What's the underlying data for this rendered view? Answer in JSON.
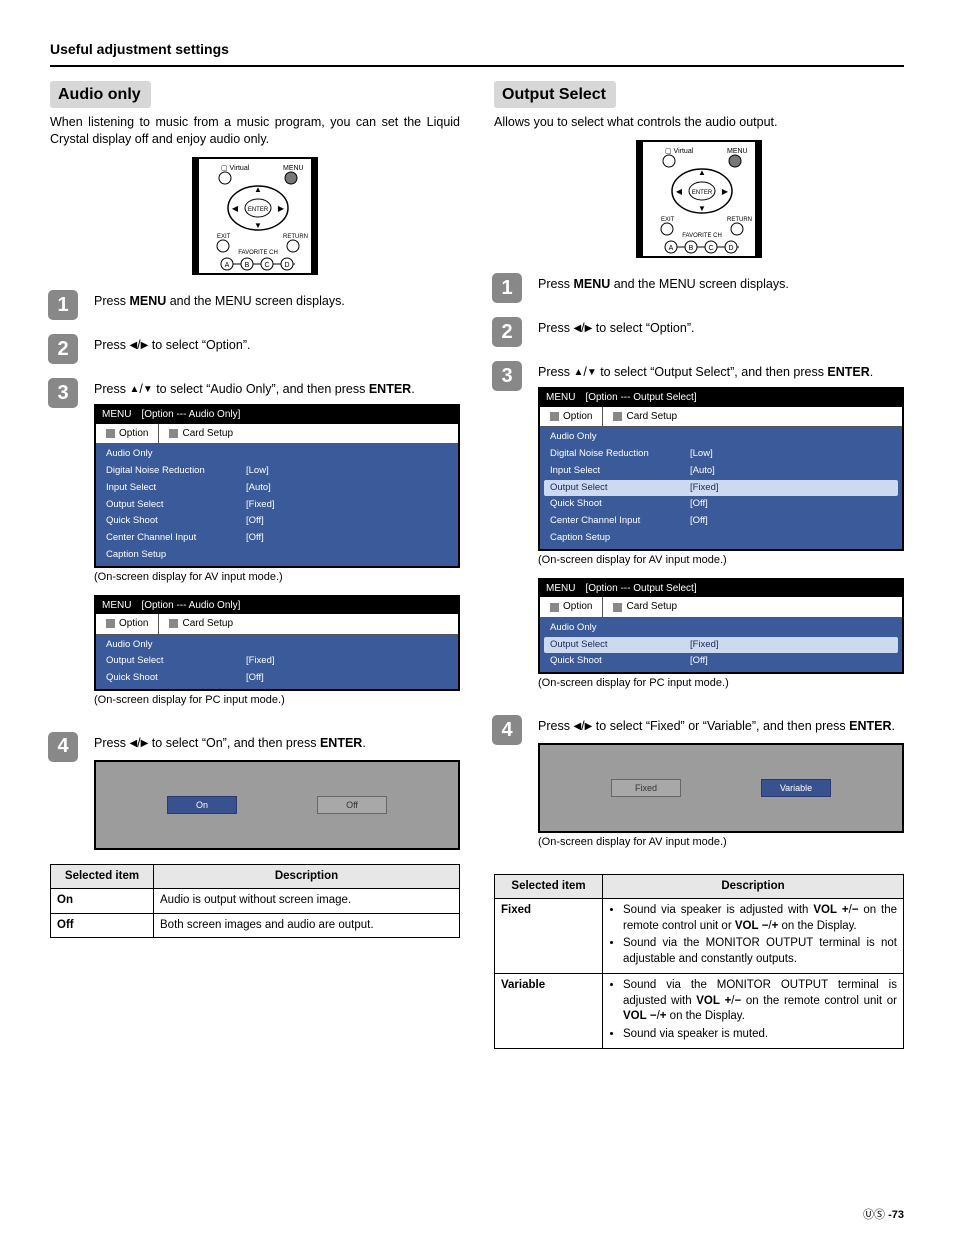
{
  "header": "Useful adjustment settings",
  "left": {
    "title": "Audio only",
    "intro": "When listening to music from a music program, you can set the Liquid Crystal display off and enjoy audio only.",
    "steps": {
      "s1": {
        "pre": "Press ",
        "bold": "MENU",
        "post": " and the MENU screen displays."
      },
      "s2": {
        "pre": "Press ",
        "post": " to select “Option”."
      },
      "s3": {
        "pre": "Press ",
        "post": " to select “Audio Only”, and then press ",
        "end": ".",
        "bold2": "ENTER"
      },
      "s4": {
        "pre": "Press ",
        "post": " to select “On”, and then press ",
        "bold2": "ENTER",
        "end": "."
      }
    },
    "menuA": {
      "title": "MENU [Option --- Audio Only]",
      "tab1": "Option",
      "tab2": "Card Setup",
      "rows": [
        [
          "Audio Only",
          ""
        ],
        [
          "Digital Noise Reduction",
          "[Low]"
        ],
        [
          "Input Select",
          "[Auto]"
        ],
        [
          "Output Select",
          "[Fixed]"
        ],
        [
          "Quick Shoot",
          "[Off]"
        ],
        [
          "Center Channel Input",
          "[Off]"
        ],
        [
          "Caption Setup",
          ""
        ]
      ],
      "caption": "(On-screen display for AV input mode.)"
    },
    "menuB": {
      "title": "MENU [Option --- Audio Only]",
      "tab1": "Option",
      "tab2": "Card Setup",
      "rows": [
        [
          "Audio Only",
          ""
        ],
        [
          "Output Select",
          "[Fixed]"
        ],
        [
          "Quick Shoot",
          "[Off]"
        ]
      ],
      "caption": "(On-screen display for PC input mode.)"
    },
    "sel": {
      "on": "On",
      "off": "Off"
    },
    "table": {
      "h1": "Selected item",
      "h2": "Description",
      "r1k": "On",
      "r1v": "Audio is output without screen image.",
      "r2k": "Off",
      "r2v": "Both screen images and audio are output."
    }
  },
  "right": {
    "title": "Output Select",
    "intro": "Allows you to select what controls the audio output.",
    "steps": {
      "s1": {
        "pre": "Press ",
        "bold": "MENU",
        "post": " and the MENU screen displays."
      },
      "s2": {
        "pre": "Press ",
        "post": " to select “Option”."
      },
      "s3": {
        "pre": "Press ",
        "post": " to select “Output Select”, and then press ",
        "bold2": "ENTER",
        "end": "."
      },
      "s4": {
        "pre": "Press ",
        "post": " to select “Fixed” or “Variable”, and then press ",
        "bold2": "ENTER",
        "end": "."
      }
    },
    "menuA": {
      "title": "MENU [Option --- Output Select]",
      "tab1": "Option",
      "tab2": "Card Setup",
      "rows": [
        [
          "Audio Only",
          ""
        ],
        [
          "Digital Noise Reduction",
          "[Low]"
        ],
        [
          "Input Select",
          "[Auto]"
        ],
        [
          "Output Select",
          "[Fixed]"
        ],
        [
          "Quick Shoot",
          "[Off]"
        ],
        [
          "Center Channel Input",
          "[Off]"
        ],
        [
          "Caption Setup",
          ""
        ]
      ],
      "hlIndex": 3,
      "caption": "(On-screen display for AV input mode.)"
    },
    "menuB": {
      "title": "MENU [Option --- Output Select]",
      "tab1": "Option",
      "tab2": "Card Setup",
      "rows": [
        [
          "Audio Only",
          ""
        ],
        [
          "Output Select",
          "[Fixed]"
        ],
        [
          "Quick Shoot",
          "[Off]"
        ]
      ],
      "hlIndex": 1,
      "caption": "(On-screen display for PC input mode.)"
    },
    "sel": {
      "a": "Fixed",
      "b": "Variable"
    },
    "selCaption": "(On-screen display for AV input mode.)",
    "table": {
      "h1": "Selected item",
      "h2": "Description",
      "r1k": "Fixed",
      "r1b1a": "Sound via speaker is adjusted with ",
      "r1b1b": "VOL k",
      "r1b1c": "/",
      "r1b1d": "l",
      "r1b1e": " on the remote control unit or ",
      "r1b1f": "VOL l",
      "r1b1g": "/",
      "r1b1h": "k",
      "r1b1i": " on the Display.",
      "r1b2": "Sound via the MONITOR OUTPUT terminal is not adjustable and constantly outputs.",
      "r2k": "Variable",
      "r2b1a": "Sound via the MONITOR OUTPUT terminal is adjusted with ",
      "r2b1b": "VOL k",
      "r2b1c": "/",
      "r2b1d": "l",
      "r2b1e": " on the remote control unit or ",
      "r2b1f": "VOL l",
      "r2b1g": "/",
      "r2b1h": "k",
      "r2b1i": " on the Display.",
      "r2b2": "Sound via speaker is muted."
    }
  },
  "page": "-73"
}
